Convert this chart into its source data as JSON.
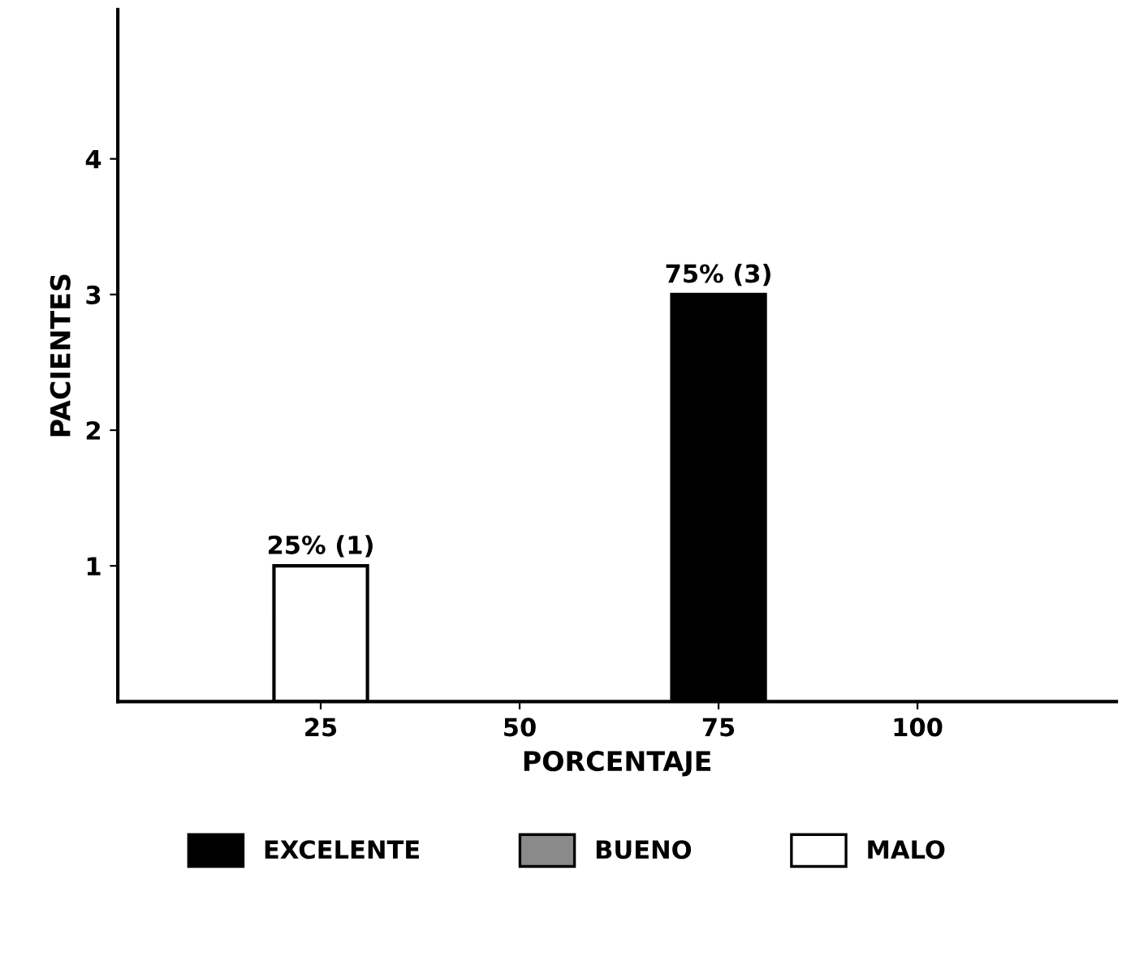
{
  "chart_data": {
    "type": "bar",
    "xlabel": "PORCENTAJE",
    "ylabel": "PACIENTES",
    "categories": [
      "25",
      "50",
      "75",
      "100"
    ],
    "ylim": [
      0,
      5.1
    ],
    "yticks": [
      1,
      2,
      3,
      4
    ],
    "legend": "bottom",
    "grid": false,
    "series": [
      {
        "name": "EXCELENTE",
        "color": "#000000",
        "values": [
          null,
          null,
          3,
          null
        ],
        "value_labels": [
          null,
          null,
          "75% (3)",
          null
        ]
      },
      {
        "name": "BUENO",
        "color": "#8a8a8a",
        "values": [
          null,
          null,
          null,
          null
        ]
      },
      {
        "name": "MALO",
        "color": "#ffffff",
        "values": [
          1,
          null,
          null,
          null
        ],
        "value_labels": [
          "25% (1)",
          null,
          null,
          null
        ]
      }
    ]
  }
}
